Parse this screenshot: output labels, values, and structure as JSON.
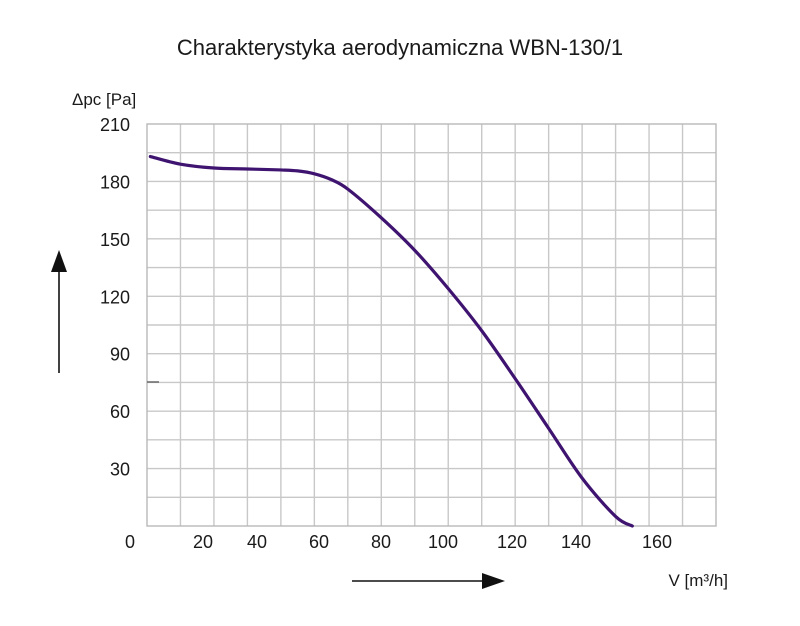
{
  "chart_data": {
    "type": "line",
    "title": "Charakterystyka aerodynamiczna WBN-130/1",
    "ylabel": "Δpc [Pa]",
    "xlabel": "V [m³/h]",
    "xlim": [
      0,
      170
    ],
    "ylim": [
      0,
      210
    ],
    "x_ticks": [
      0,
      20,
      40,
      60,
      80,
      100,
      120,
      140,
      160
    ],
    "y_ticks": [
      30,
      60,
      90,
      120,
      150,
      180,
      210
    ],
    "grid": true,
    "legend": "none",
    "series": [
      {
        "color": "#3f1470",
        "x": [
          1,
          10,
          20,
          30,
          40,
          45,
          50,
          55,
          60,
          70,
          80,
          90,
          100,
          110,
          120,
          130,
          140,
          145
        ],
        "y": [
          193,
          189,
          187,
          186.5,
          186,
          185.5,
          184,
          181,
          176,
          161,
          144,
          124,
          102,
          77,
          51,
          25,
          5,
          0
        ]
      }
    ]
  }
}
